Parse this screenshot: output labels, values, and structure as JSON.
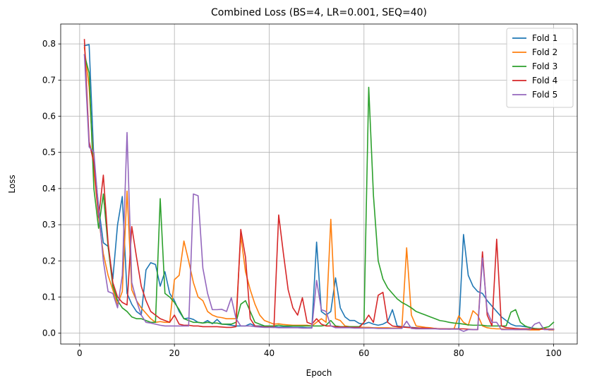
{
  "chart_data": {
    "type": "line",
    "title": "Combined Loss (BS=4, LR=0.001, SEQ=40)",
    "xlabel": "Epoch",
    "ylabel": "Loss",
    "xlim": [
      -4,
      105
    ],
    "ylim": [
      -0.03,
      0.855
    ],
    "xticks": [
      0,
      20,
      40,
      60,
      80,
      100
    ],
    "yticks": [
      0.0,
      0.1,
      0.2,
      0.3,
      0.4,
      0.5,
      0.6,
      0.7,
      0.8
    ],
    "grid": true,
    "legend_position": "top-right",
    "x": [
      1,
      2,
      3,
      4,
      5,
      6,
      7,
      8,
      9,
      10,
      11,
      12,
      13,
      14,
      15,
      16,
      17,
      18,
      19,
      20,
      21,
      22,
      23,
      24,
      25,
      26,
      27,
      28,
      29,
      30,
      31,
      32,
      33,
      34,
      35,
      36,
      37,
      38,
      39,
      40,
      41,
      42,
      43,
      44,
      45,
      46,
      47,
      48,
      49,
      50,
      51,
      52,
      53,
      54,
      55,
      56,
      57,
      58,
      59,
      60,
      61,
      62,
      63,
      64,
      65,
      66,
      67,
      68,
      69,
      70,
      71,
      72,
      73,
      74,
      75,
      76,
      77,
      78,
      79,
      80,
      81,
      82,
      83,
      84,
      85,
      86,
      87,
      88,
      89,
      90,
      91,
      92,
      93,
      94,
      95,
      96,
      97,
      98,
      99,
      100
    ],
    "series": [
      {
        "name": "Fold 1",
        "color": "#1f77b4",
        "values": [
          0.795,
          0.798,
          0.48,
          0.35,
          0.25,
          0.24,
          0.15,
          0.3,
          0.378,
          0.11,
          0.08,
          0.06,
          0.05,
          0.175,
          0.195,
          0.19,
          0.13,
          0.17,
          0.11,
          0.09,
          0.06,
          0.04,
          0.042,
          0.038,
          0.03,
          0.028,
          0.035,
          0.026,
          0.038,
          0.025,
          0.024,
          0.022,
          0.02,
          0.02,
          0.02,
          0.026,
          0.02,
          0.02,
          0.018,
          0.018,
          0.018,
          0.017,
          0.017,
          0.017,
          0.016,
          0.016,
          0.016,
          0.015,
          0.015,
          0.252,
          0.06,
          0.05,
          0.06,
          0.153,
          0.07,
          0.045,
          0.035,
          0.035,
          0.027,
          0.025,
          0.03,
          0.025,
          0.022,
          0.025,
          0.032,
          0.065,
          0.02,
          0.018,
          0.017,
          0.016,
          0.015,
          0.014,
          0.014,
          0.013,
          0.013,
          0.012,
          0.012,
          0.012,
          0.012,
          0.012,
          0.273,
          0.16,
          0.13,
          0.115,
          0.11,
          0.09,
          0.075,
          0.06,
          0.045,
          0.035,
          0.025,
          0.02,
          0.02,
          0.018,
          0.016,
          0.013,
          0.012,
          0.012,
          0.011,
          0.011
        ]
      },
      {
        "name": "Fold 2",
        "color": "#ff7f0e",
        "values": [
          0.79,
          0.68,
          0.45,
          0.32,
          0.22,
          0.16,
          0.12,
          0.08,
          0.115,
          0.393,
          0.12,
          0.09,
          0.07,
          0.055,
          0.04,
          0.03,
          0.032,
          0.03,
          0.03,
          0.148,
          0.16,
          0.255,
          0.2,
          0.14,
          0.1,
          0.09,
          0.06,
          0.05,
          0.045,
          0.043,
          0.04,
          0.04,
          0.04,
          0.27,
          0.17,
          0.12,
          0.08,
          0.05,
          0.035,
          0.03,
          0.025,
          0.026,
          0.024,
          0.023,
          0.022,
          0.022,
          0.022,
          0.022,
          0.02,
          0.03,
          0.04,
          0.03,
          0.315,
          0.04,
          0.035,
          0.02,
          0.018,
          0.017,
          0.017,
          0.016,
          0.016,
          0.015,
          0.015,
          0.015,
          0.015,
          0.014,
          0.014,
          0.015,
          0.236,
          0.05,
          0.02,
          0.018,
          0.016,
          0.015,
          0.013,
          0.012,
          0.012,
          0.011,
          0.012,
          0.048,
          0.03,
          0.022,
          0.062,
          0.05,
          0.02,
          0.015,
          0.013,
          0.012,
          0.012,
          0.011,
          0.011,
          0.01,
          0.01,
          0.01,
          0.009,
          0.009,
          0.009,
          0.015,
          0.009,
          0.009
        ]
      },
      {
        "name": "Fold 3",
        "color": "#2ca02c",
        "values": [
          0.77,
          0.72,
          0.4,
          0.29,
          0.385,
          0.24,
          0.13,
          0.09,
          0.07,
          0.06,
          0.045,
          0.04,
          0.04,
          0.035,
          0.03,
          0.03,
          0.372,
          0.11,
          0.1,
          0.085,
          0.065,
          0.04,
          0.035,
          0.03,
          0.03,
          0.028,
          0.03,
          0.028,
          0.028,
          0.025,
          0.025,
          0.025,
          0.03,
          0.08,
          0.09,
          0.06,
          0.03,
          0.025,
          0.02,
          0.02,
          0.02,
          0.022,
          0.02,
          0.02,
          0.02,
          0.02,
          0.02,
          0.02,
          0.02,
          0.02,
          0.02,
          0.022,
          0.035,
          0.02,
          0.018,
          0.018,
          0.018,
          0.018,
          0.018,
          0.03,
          0.68,
          0.38,
          0.2,
          0.15,
          0.125,
          0.11,
          0.095,
          0.085,
          0.078,
          0.07,
          0.06,
          0.055,
          0.05,
          0.045,
          0.04,
          0.035,
          0.033,
          0.03,
          0.028,
          0.027,
          0.025,
          0.023,
          0.022,
          0.022,
          0.022,
          0.02,
          0.02,
          0.02,
          0.02,
          0.02,
          0.058,
          0.065,
          0.03,
          0.02,
          0.015,
          0.013,
          0.012,
          0.015,
          0.018,
          0.03
        ]
      },
      {
        "name": "Fold 4",
        "color": "#d62728",
        "values": [
          0.812,
          0.53,
          0.47,
          0.32,
          0.437,
          0.25,
          0.14,
          0.1,
          0.085,
          0.078,
          0.295,
          0.21,
          0.13,
          0.09,
          0.06,
          0.05,
          0.04,
          0.035,
          0.03,
          0.05,
          0.025,
          0.022,
          0.022,
          0.02,
          0.02,
          0.018,
          0.018,
          0.018,
          0.018,
          0.017,
          0.016,
          0.016,
          0.018,
          0.287,
          0.21,
          0.04,
          0.02,
          0.018,
          0.017,
          0.017,
          0.016,
          0.327,
          0.22,
          0.12,
          0.07,
          0.05,
          0.098,
          0.03,
          0.025,
          0.04,
          0.025,
          0.02,
          0.02,
          0.018,
          0.017,
          0.017,
          0.016,
          0.016,
          0.016,
          0.03,
          0.05,
          0.03,
          0.105,
          0.113,
          0.03,
          0.02,
          0.018,
          0.017,
          0.016,
          0.015,
          0.014,
          0.014,
          0.014,
          0.013,
          0.013,
          0.012,
          0.012,
          0.012,
          0.012,
          0.012,
          0.012,
          0.011,
          0.01,
          0.01,
          0.225,
          0.05,
          0.02,
          0.26,
          0.02,
          0.015,
          0.014,
          0.013,
          0.012,
          0.012,
          0.012,
          0.011,
          0.011,
          0.011,
          0.011,
          0.011
        ]
      },
      {
        "name": "Fold 5",
        "color": "#9467bd",
        "values": [
          0.77,
          0.515,
          0.5,
          0.34,
          0.2,
          0.115,
          0.11,
          0.07,
          0.16,
          0.555,
          0.14,
          0.09,
          0.05,
          0.03,
          0.028,
          0.025,
          0.022,
          0.02,
          0.02,
          0.02,
          0.02,
          0.02,
          0.02,
          0.385,
          0.38,
          0.18,
          0.11,
          0.065,
          0.065,
          0.066,
          0.06,
          0.098,
          0.04,
          0.02,
          0.02,
          0.02,
          0.018,
          0.017,
          0.016,
          0.016,
          0.016,
          0.015,
          0.015,
          0.015,
          0.015,
          0.015,
          0.014,
          0.014,
          0.014,
          0.146,
          0.065,
          0.06,
          0.02,
          0.015,
          0.015,
          0.015,
          0.015,
          0.014,
          0.014,
          0.014,
          0.014,
          0.014,
          0.013,
          0.013,
          0.013,
          0.013,
          0.013,
          0.013,
          0.033,
          0.013,
          0.012,
          0.012,
          0.012,
          0.012,
          0.012,
          0.011,
          0.011,
          0.011,
          0.011,
          0.011,
          0.005,
          0.01,
          0.01,
          0.01,
          0.208,
          0.06,
          0.03,
          0.03,
          0.01,
          0.01,
          0.01,
          0.01,
          0.01,
          0.01,
          0.01,
          0.025,
          0.03,
          0.01,
          0.01,
          0.01
        ]
      }
    ]
  }
}
